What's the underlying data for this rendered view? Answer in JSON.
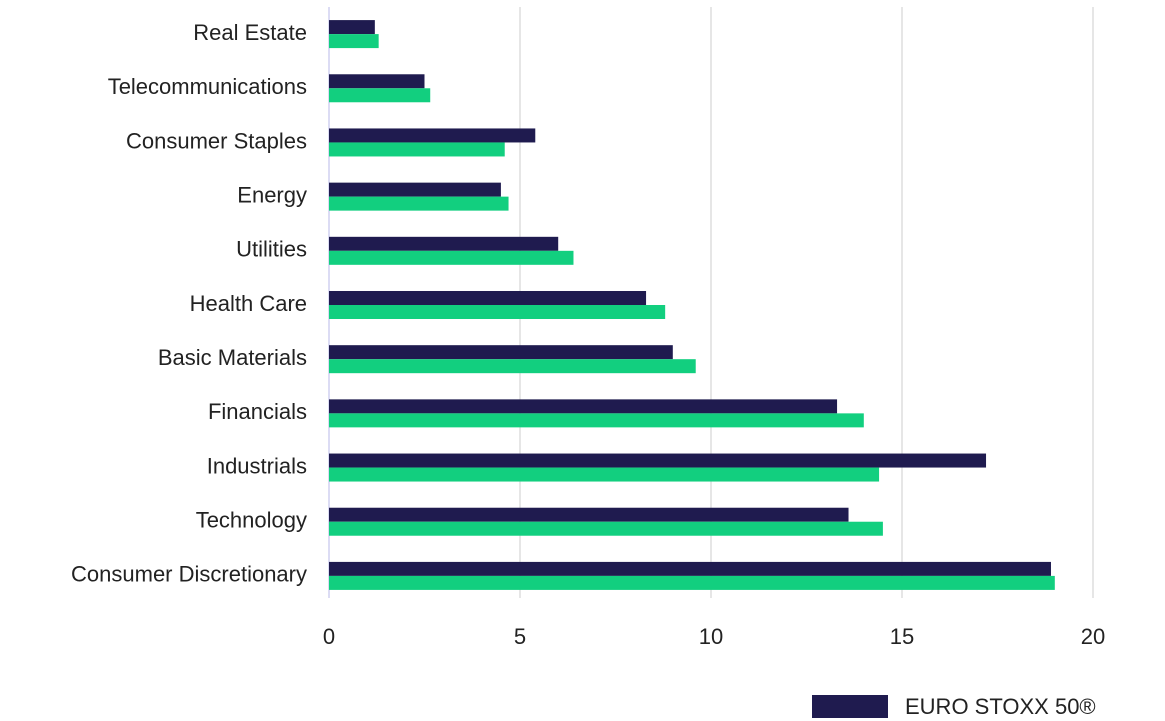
{
  "chart_data": {
    "type": "bar",
    "orientation": "horizontal",
    "categories": [
      "Real Estate",
      "Telecommunications",
      "Consumer Staples",
      "Energy",
      "Utilities",
      "Health Care",
      "Basic Materials",
      "Financials",
      "Industrials",
      "Technology",
      "Consumer Discretionary"
    ],
    "series": [
      {
        "name": "EURO STOXX 50®",
        "color": "#1f1b4f",
        "values": [
          1.2,
          2.5,
          5.4,
          4.5,
          6.0,
          8.3,
          9.0,
          13.3,
          17.2,
          13.6,
          18.9
        ]
      },
      {
        "color": "#12cf7f",
        "values": [
          1.3,
          2.65,
          4.6,
          4.7,
          6.4,
          8.8,
          9.6,
          14.0,
          14.4,
          14.5,
          19.0
        ]
      }
    ],
    "xlim": [
      0,
      20
    ],
    "xticks": [
      0,
      5,
      10,
      15,
      20
    ],
    "grid": true,
    "legend": "bottom-right"
  }
}
